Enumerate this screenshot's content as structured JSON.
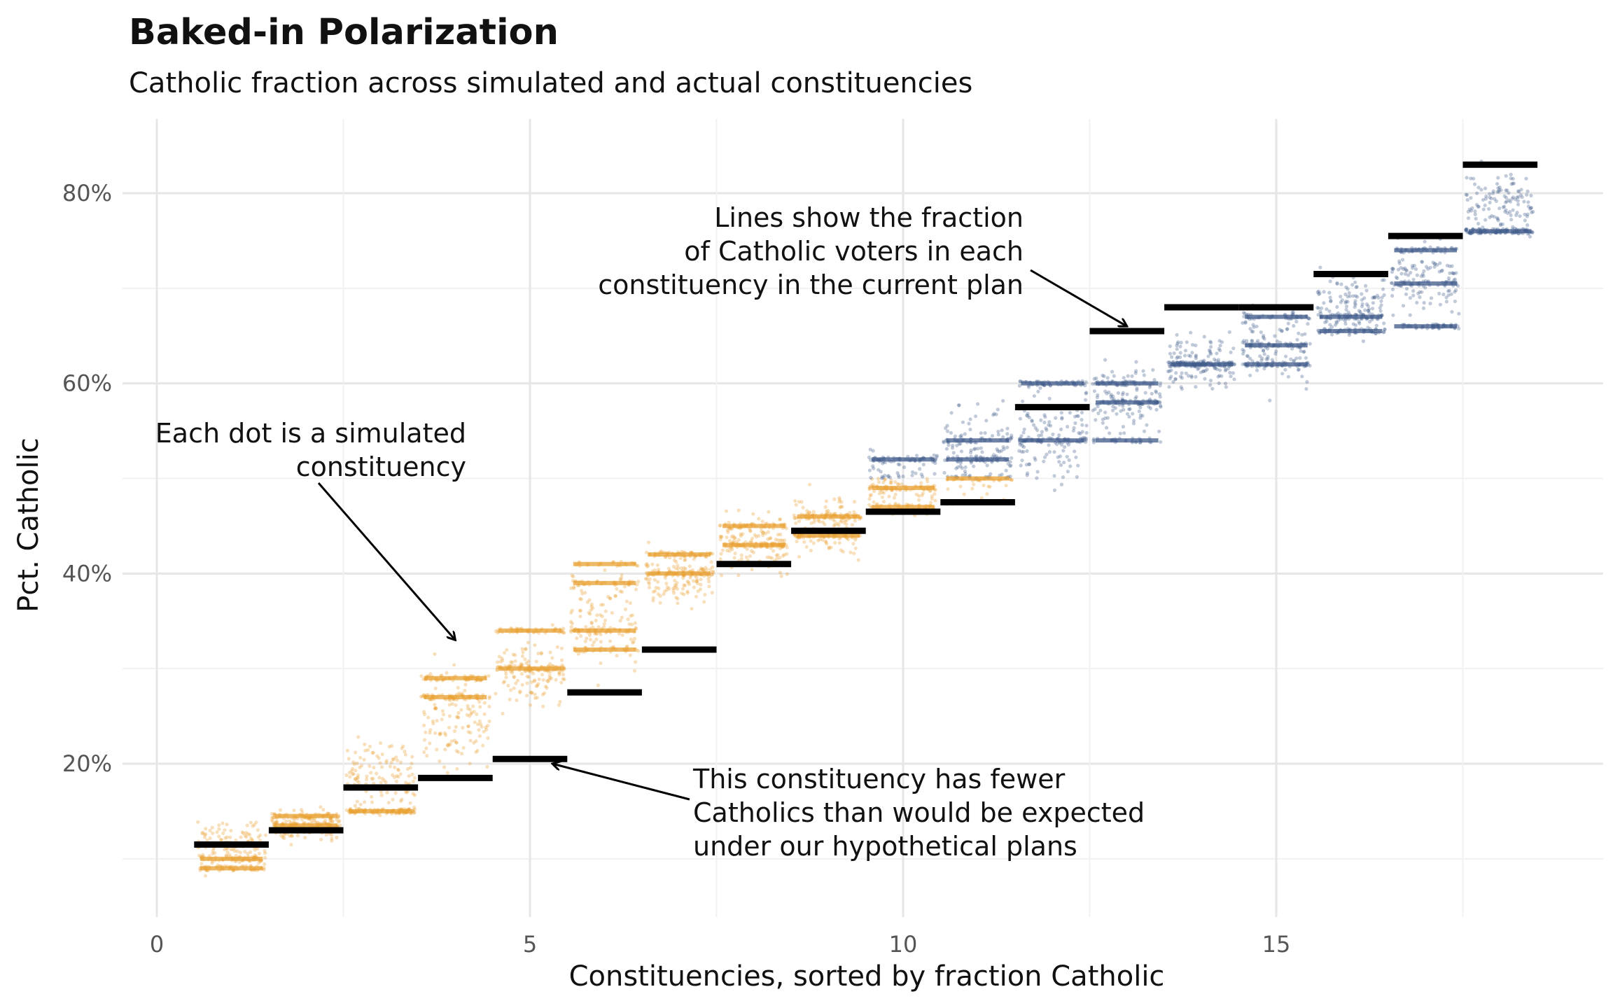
{
  "chart_data": {
    "type": "scatter",
    "title": "Baked-in Polarization",
    "subtitle": "Catholic fraction across simulated and actual constituencies",
    "xlabel": "Constituencies, sorted by fraction Catholic",
    "ylabel": "Pct. Catholic",
    "xlim": [
      0,
      19
    ],
    "ylim": [
      4,
      88
    ],
    "x_ticks": [
      0,
      5,
      10,
      15
    ],
    "y_ticks": [
      20,
      40,
      60,
      80
    ],
    "y_tick_labels": [
      "20%",
      "40%",
      "60%",
      "80%"
    ],
    "grid": true,
    "series": [
      {
        "kind": "simulated",
        "colors": [
          "#e8a030",
          "#3f5a8a"
        ],
        "constituencies": [
          {
            "x": 1,
            "range": [
              8,
              15
            ],
            "bands": [
              9,
              10
            ],
            "color": "#e8a030"
          },
          {
            "x": 2,
            "range": [
              11,
              16
            ],
            "bands": [
              13.5,
              14.5
            ],
            "color": "#e8a030"
          },
          {
            "x": 3,
            "range": [
              13,
              24
            ],
            "bands": [
              15
            ],
            "color": "#e8a030"
          },
          {
            "x": 4,
            "range": [
              17,
              32
            ],
            "bands": [
              27,
              29
            ],
            "color": "#e8a030"
          },
          {
            "x": 5,
            "range": [
              24,
              35
            ],
            "bands": [
              30,
              34
            ],
            "color": "#e8a030"
          },
          {
            "x": 6,
            "range": [
              28,
              43
            ],
            "bands": [
              32,
              34,
              39,
              41
            ],
            "color": "#e8a030"
          },
          {
            "x": 7,
            "range": [
              35,
              44
            ],
            "bands": [
              40,
              42
            ],
            "color": "#e8a030"
          },
          {
            "x": 8,
            "range": [
              38,
              48
            ],
            "bands": [
              43,
              45
            ],
            "color": "#e8a030"
          },
          {
            "x": 9,
            "range": [
              40,
              50
            ],
            "bands": [
              44,
              46
            ],
            "color": "#e8a030"
          },
          {
            "x": 10,
            "range": [
              44,
              55
            ],
            "bands": [
              47,
              49,
              52
            ],
            "color": "#e8a030",
            "blue_above": 50
          },
          {
            "x": 11,
            "range": [
              45,
              60
            ],
            "bands": [
              50,
              52,
              54
            ],
            "color": "#e8a030",
            "blue_above": 50
          },
          {
            "x": 12,
            "range": [
              47,
              62
            ],
            "bands": [
              54,
              60
            ],
            "color": "#3f5a8a"
          },
          {
            "x": 13,
            "range": [
              53,
              64
            ],
            "bands": [
              54,
              58,
              60
            ],
            "color": "#3f5a8a"
          },
          {
            "x": 14,
            "range": [
              57,
              67
            ],
            "bands": [
              62
            ],
            "color": "#3f5a8a"
          },
          {
            "x": 15,
            "range": [
              58,
              70
            ],
            "bands": [
              62,
              64,
              67
            ],
            "color": "#3f5a8a"
          },
          {
            "x": 16,
            "range": [
              63,
              73
            ],
            "bands": [
              65.5,
              67
            ],
            "color": "#3f5a8a"
          },
          {
            "x": 17,
            "range": [
              65,
              77
            ],
            "bands": [
              66,
              70.5,
              74
            ],
            "color": "#3f5a8a"
          },
          {
            "x": 18,
            "range": [
              74,
              84
            ],
            "bands": [
              76
            ],
            "color": "#3f5a8a"
          }
        ]
      },
      {
        "kind": "current-plan",
        "color": "#000000",
        "points": [
          {
            "x": 1,
            "y": 11.5
          },
          {
            "x": 2,
            "y": 13
          },
          {
            "x": 3,
            "y": 17.5
          },
          {
            "x": 4,
            "y": 18.5
          },
          {
            "x": 5,
            "y": 20.5
          },
          {
            "x": 6,
            "y": 27.5
          },
          {
            "x": 7,
            "y": 32
          },
          {
            "x": 8,
            "y": 41
          },
          {
            "x": 9,
            "y": 44.5
          },
          {
            "x": 10,
            "y": 46.5
          },
          {
            "x": 11,
            "y": 47.5
          },
          {
            "x": 12,
            "y": 57.5
          },
          {
            "x": 13,
            "y": 65.5
          },
          {
            "x": 14,
            "y": 68
          },
          {
            "x": 15,
            "y": 68
          },
          {
            "x": 16,
            "y": 71.5
          },
          {
            "x": 17,
            "y": 75.5
          },
          {
            "x": 18,
            "y": 83
          }
        ]
      }
    ],
    "annotations": [
      {
        "lines": [
          "Each dot is a simulated",
          "constituency"
        ],
        "arrow_to": [
          4,
          33
        ]
      },
      {
        "lines": [
          "Lines show the fraction",
          "of Catholic voters in each",
          "constituency in the current plan"
        ],
        "arrow_to": [
          13,
          66
        ]
      },
      {
        "lines": [
          "This constituency has fewer",
          "Catholics than would be expected",
          "under our hypothetical plans"
        ],
        "arrow_to": [
          5.3,
          20
        ]
      }
    ]
  }
}
